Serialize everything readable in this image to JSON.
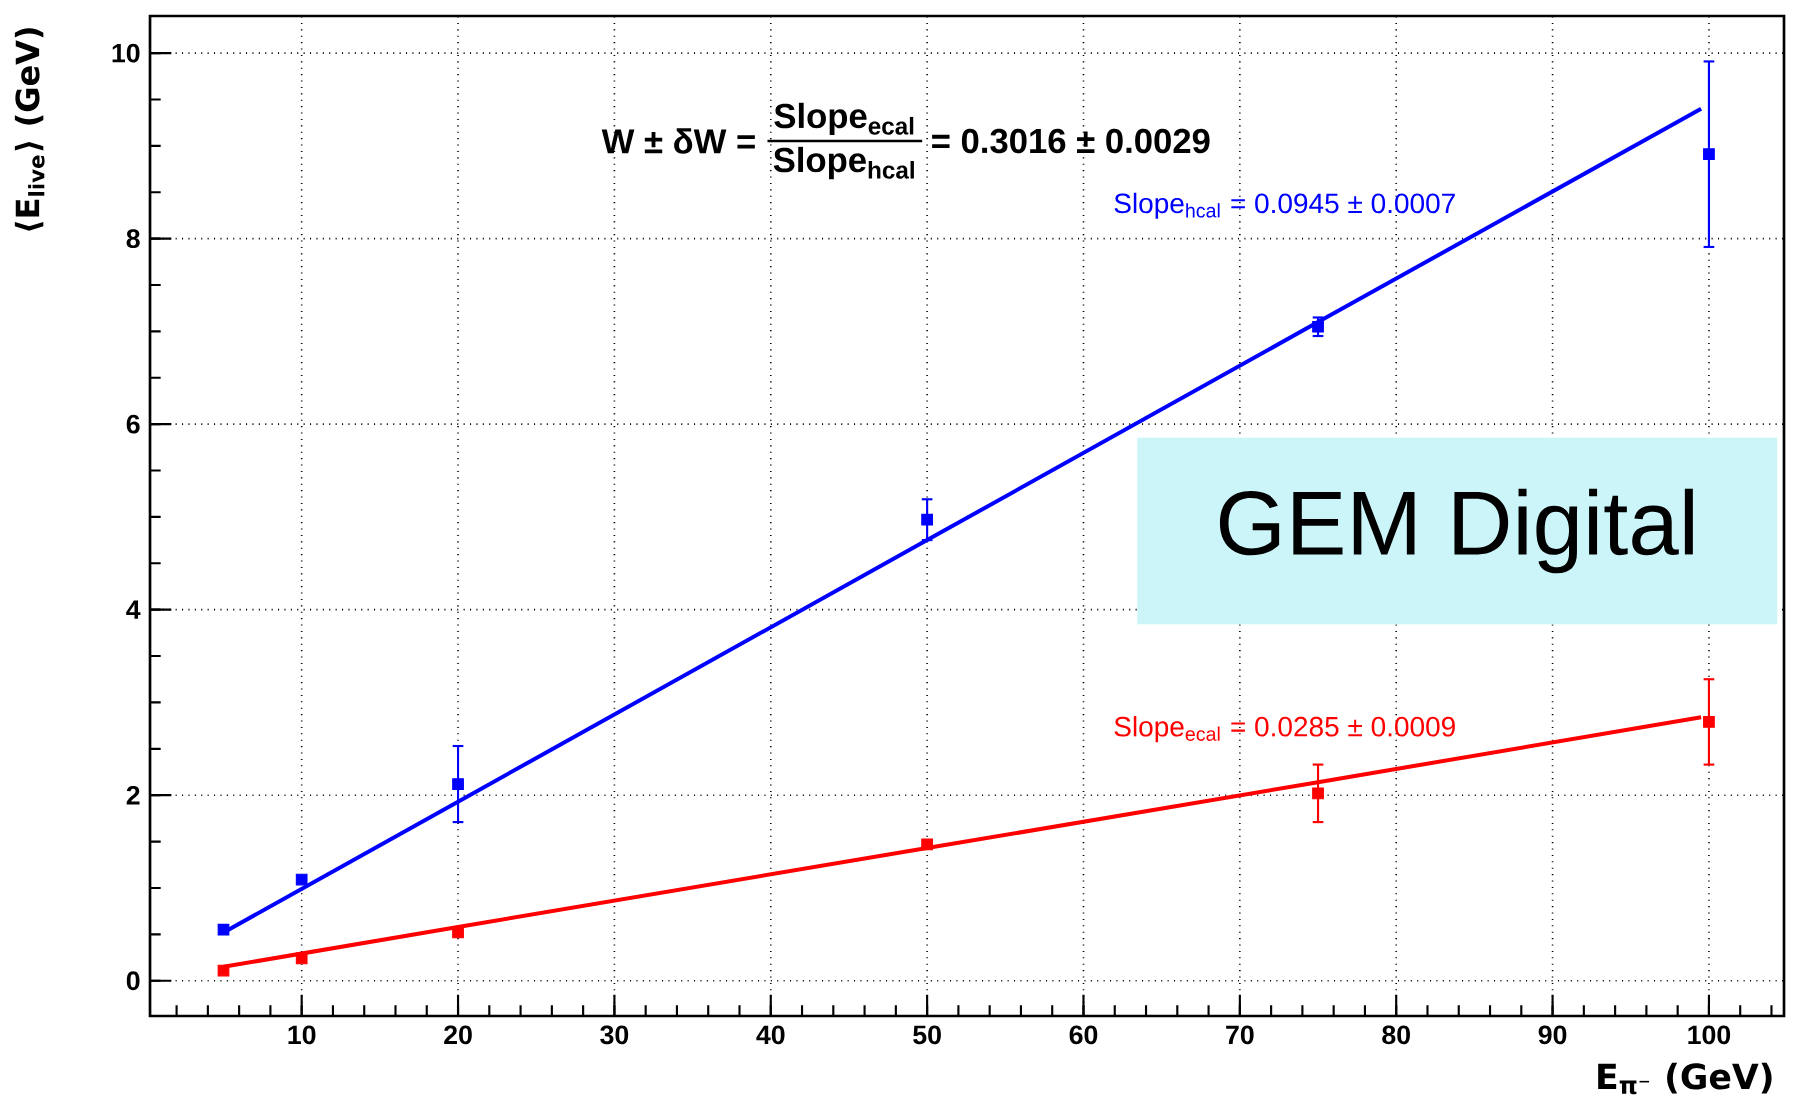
{
  "chart_data": {
    "type": "scatter",
    "xlabel": "**E$_{π⁻}$ (GeV)**",
    "ylabel": "**⟨E$_{live}$⟩ (GeV)**",
    "x": [
      5,
      10,
      20,
      50,
      75,
      100
    ],
    "series": [
      {
        "color": "#0000ff",
        "values": [
          0.55,
          1.09,
          2.12,
          4.97,
          7.05,
          8.91
        ],
        "errors": [
          null,
          null,
          0.41,
          0.22,
          0.1,
          1.0
        ]
      },
      {
        "color": "#ff0000",
        "values": [
          0.11,
          0.24,
          0.52,
          1.47,
          2.02,
          2.79
        ],
        "errors": [
          null,
          null,
          null,
          null,
          0.31,
          0.46
        ]
      },
      {
        "type": "line",
        "name": "Slope$_{hcal}$ = 0.0945 ± 0.0007",
        "color": "#0000ff",
        "x": [
          5,
          20,
          50,
          75,
          99.5
        ],
        "values": [
          0.52,
          1.93,
          4.75,
          7.1,
          9.4
        ],
        "marker": "none"
      },
      {
        "type": "line",
        "name": "Slope$_{ecal}$ = 0.0285 ± 0.0009",
        "color": "#ff0000",
        "x": [
          5,
          20,
          50,
          75,
          99.5
        ],
        "values": [
          0.15,
          0.58,
          1.43,
          2.14,
          2.84
        ],
        "marker": "none"
      }
    ],
    "marker": "square",
    "grid": true,
    "xlim": [
      0.3,
      104.8
    ],
    "ylim": [
      -0.38,
      10.4
    ],
    "xticks": [
      10,
      20,
      30,
      40,
      50,
      60,
      70,
      80,
      90,
      100
    ],
    "yticks": [
      0,
      2,
      4,
      6,
      8,
      10
    ],
    "annotations": [
      "**W ± δW =**",
      "**Slope$_{ecal}$**",
      "**Slope$_{hcal}$**",
      "**= 0.3016 ± 0.0029**",
      "GEM Digital"
    ]
  }
}
